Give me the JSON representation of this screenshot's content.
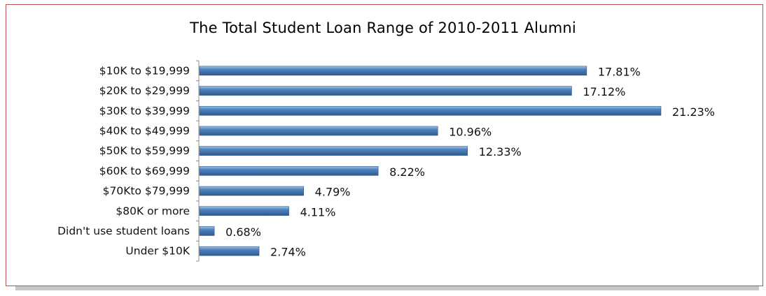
{
  "chart_data": {
    "type": "bar",
    "orientation": "horizontal",
    "title": "The Total Student Loan Range of 2010-2011 Alumni",
    "categories": [
      "$10K to $19,999",
      "$20K to $29,999",
      "$30K to $39,999",
      "$40K to $49,999",
      "$50K to $59,999",
      "$60K to $69,999",
      "$70Kto $79,999",
      "$80K or more",
      "Didn't use student loans",
      "Under $10K"
    ],
    "values": [
      17.81,
      17.12,
      21.23,
      10.96,
      12.33,
      8.22,
      4.79,
      4.11,
      0.68,
      2.74
    ],
    "value_labels": [
      "17.81%",
      "17.12%",
      "21.23%",
      "10.96%",
      "12.33%",
      "8.22%",
      "4.79%",
      "4.11%",
      "0.68%",
      "2.74%"
    ],
    "xlabel": "",
    "ylabel": "",
    "xlim": [
      0,
      21.23
    ],
    "grid": false,
    "legend": "none",
    "colors": {
      "bar": "#4f81bd",
      "bar_light": "#9dc3e6",
      "bar_dark": "#2e5c91",
      "frame": "#c0504d",
      "shadow": "#c8c8c8"
    }
  }
}
